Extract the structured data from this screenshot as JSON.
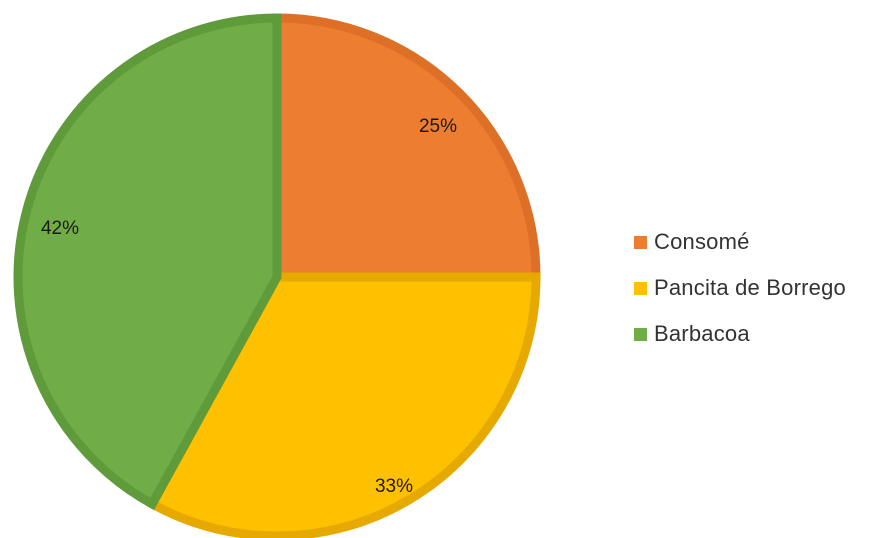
{
  "chart_data": {
    "type": "pie",
    "title": "",
    "series": [
      {
        "name": "Consomé",
        "value": 25,
        "label": "25%",
        "color": "#ED7D31",
        "border": "#DD6F27"
      },
      {
        "name": "Pancita de Borrego",
        "value": 33,
        "label": "33%",
        "color": "#FFC000",
        "border": "#E6A900"
      },
      {
        "name": "Barbacoa",
        "value": 42,
        "label": "42%",
        "color": "#70AD47",
        "border": "#5F9A3B"
      }
    ],
    "legend_position": "right",
    "start_angle": "top",
    "direction": "clockwise"
  }
}
